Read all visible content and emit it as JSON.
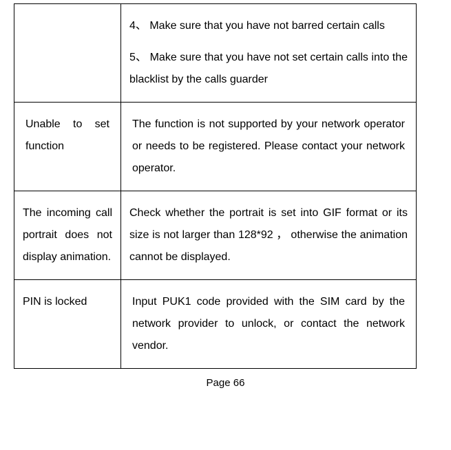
{
  "table": {
    "rows": [
      {
        "left": "",
        "right_paras": [
          "4、 Make sure that you have not barred certain calls",
          "5、 Make sure that you have not set certain calls into the blacklist by the calls guarder"
        ]
      },
      {
        "left": "Unable to set function",
        "right": "The function is not supported by your network operator or needs to be registered. Please contact your network operator."
      },
      {
        "left": "The incoming call portrait does not display animation.",
        "right": "Check whether the portrait is set into GIF format or its size is not larger than 128*92 ， otherwise the animation cannot be displayed."
      },
      {
        "left": "PIN is locked",
        "right": "Input PUK1 code provided with the SIM card by the network provider to unlock, or contact the network vendor."
      }
    ]
  },
  "page_number": "Page 66"
}
